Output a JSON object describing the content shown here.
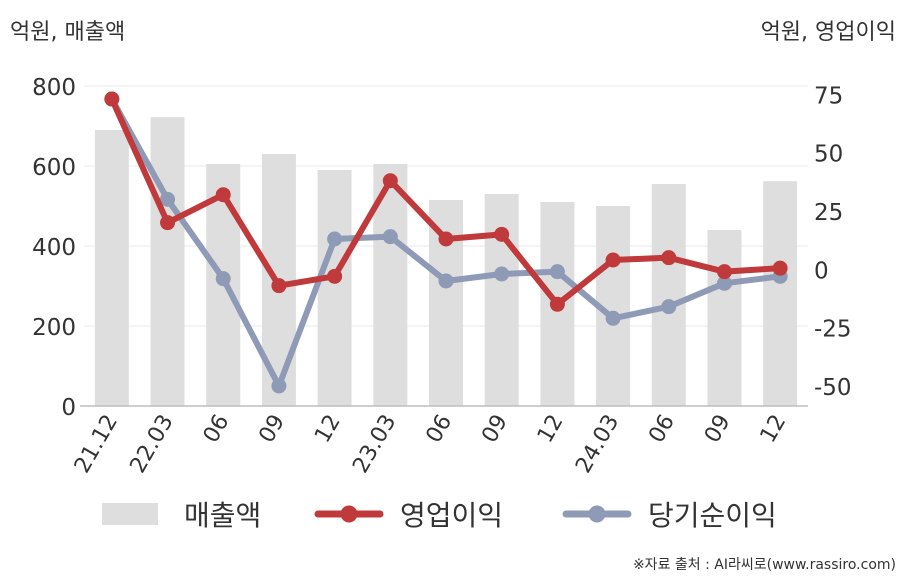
{
  "chart_data": {
    "type": "bar",
    "title": "",
    "left_axis_label": "억원, 매출액",
    "right_axis_label": "억원, 영업이익",
    "categories": [
      "21.12",
      "22.03",
      "06",
      "09",
      "12",
      "23.03",
      "06",
      "09",
      "12",
      "24.03",
      "06",
      "09",
      "12"
    ],
    "left_ticks": [
      "0",
      "200",
      "400",
      "600",
      "800"
    ],
    "right_ticks": [
      "-50",
      "-25",
      "0",
      "25",
      "50",
      "75"
    ],
    "ylim_left": [
      0,
      800
    ],
    "ylim_right": [
      -58.6,
      78.6
    ],
    "grid": true,
    "legend_position": "bottom",
    "series": [
      {
        "name": "매출액",
        "kind": "bar",
        "axis": "left",
        "color": "#dedede",
        "values": [
          690,
          722,
          605,
          630,
          590,
          605,
          515,
          530,
          510,
          500,
          555,
          440,
          562
        ]
      },
      {
        "name": "영업이익",
        "kind": "line",
        "axis": "right",
        "color": "#c0393b",
        "values": [
          73,
          20,
          32,
          -7,
          -3,
          38,
          13,
          15,
          -15,
          4,
          5,
          -1,
          0.5
        ]
      },
      {
        "name": "당기순이익",
        "kind": "line",
        "axis": "right",
        "color": "#8e9ab6",
        "values": [
          73,
          30,
          -4,
          -50,
          13,
          14,
          -5,
          -2,
          -1,
          -21,
          -16,
          -6,
          -3
        ]
      }
    ]
  },
  "source": "※자료 출처 : AI라씨로(www.rassiro.com)"
}
